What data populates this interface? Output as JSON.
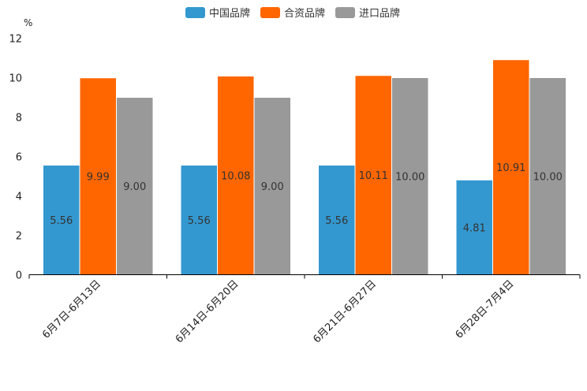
{
  "chart_data": {
    "type": "bar",
    "title": "",
    "xlabel": "",
    "ylabel": "%",
    "ylim": [
      0,
      12
    ],
    "yticks": [
      0,
      2,
      4,
      6,
      8,
      10,
      12
    ],
    "grid": false,
    "legend_position": "top-center",
    "categories": [
      "6月7日-6月13日",
      "6月14日-6月20日",
      "6月21日-6月27日",
      "6月28日-7月4日"
    ],
    "series": [
      {
        "name": "中国品牌",
        "color": "#3498d0",
        "values": [
          5.56,
          5.56,
          5.56,
          4.81
        ],
        "labels": [
          "5.56",
          "5.56",
          "5.56",
          "4.81"
        ]
      },
      {
        "name": "合资品牌",
        "color": "#ff6600",
        "values": [
          9.99,
          10.08,
          10.11,
          10.91
        ],
        "labels": [
          "9.99",
          "10.08",
          "10.11",
          "10.91"
        ]
      },
      {
        "name": "进口品牌",
        "color": "#999999",
        "values": [
          9.0,
          9.0,
          10.0,
          10.0
        ],
        "labels": [
          "9.00",
          "9.00",
          "10.00",
          "10.00"
        ]
      }
    ]
  }
}
